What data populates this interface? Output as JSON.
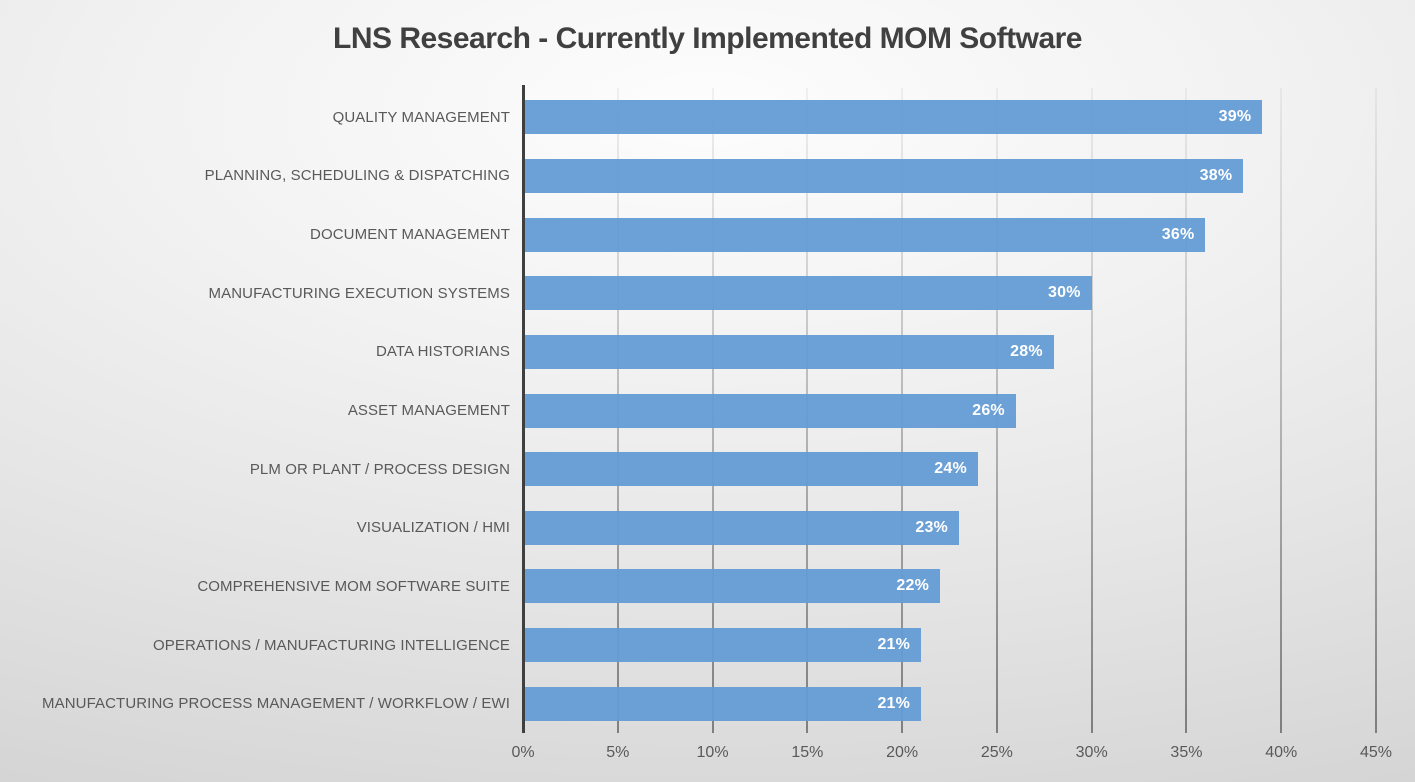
{
  "title": "LNS Research - Currently Implemented MOM Software",
  "colors": {
    "bar": "#6CA4DA",
    "bar_value_label": "#FFFFFF",
    "axis_line": "#3F3F3F",
    "gridline": "#9B9B9B",
    "category_label": "#595959",
    "tick_label": "#595959",
    "title": "#404040",
    "background": "#E3E3E3"
  },
  "chart_data": {
    "type": "bar",
    "orientation": "horizontal",
    "title": "LNS Research - Currently Implemented MOM Software",
    "categories": [
      "QUALITY MANAGEMENT",
      "PLANNING, SCHEDULING & DISPATCHING",
      "DOCUMENT MANAGEMENT",
      "MANUFACTURING EXECUTION SYSTEMS",
      "DATA HISTORIANS",
      "ASSET MANAGEMENT",
      "PLM OR PLANT / PROCESS DESIGN",
      "VISUALIZATION / HMI",
      "COMPREHENSIVE MOM SOFTWARE SUITE",
      "OPERATIONS / MANUFACTURING INTELLIGENCE",
      "MANUFACTURING PROCESS MANAGEMENT / WORKFLOW / EWI"
    ],
    "values": [
      39,
      38,
      36,
      30,
      28,
      26,
      24,
      23,
      22,
      21,
      21
    ],
    "value_labels": [
      "39%",
      "38%",
      "36%",
      "30%",
      "28%",
      "26%",
      "24%",
      "23%",
      "22%",
      "21%",
      "21%"
    ],
    "xlabel": "",
    "ylabel": "",
    "xlim": [
      0,
      45
    ],
    "x_ticks": [
      "0%",
      "5%",
      "10%",
      "15%",
      "20%",
      "25%",
      "30%",
      "35%",
      "40%",
      "45%"
    ],
    "x_tick_step": 5,
    "grid": "vertical-major-only",
    "legend": "none",
    "data_labels": "inside-end"
  }
}
